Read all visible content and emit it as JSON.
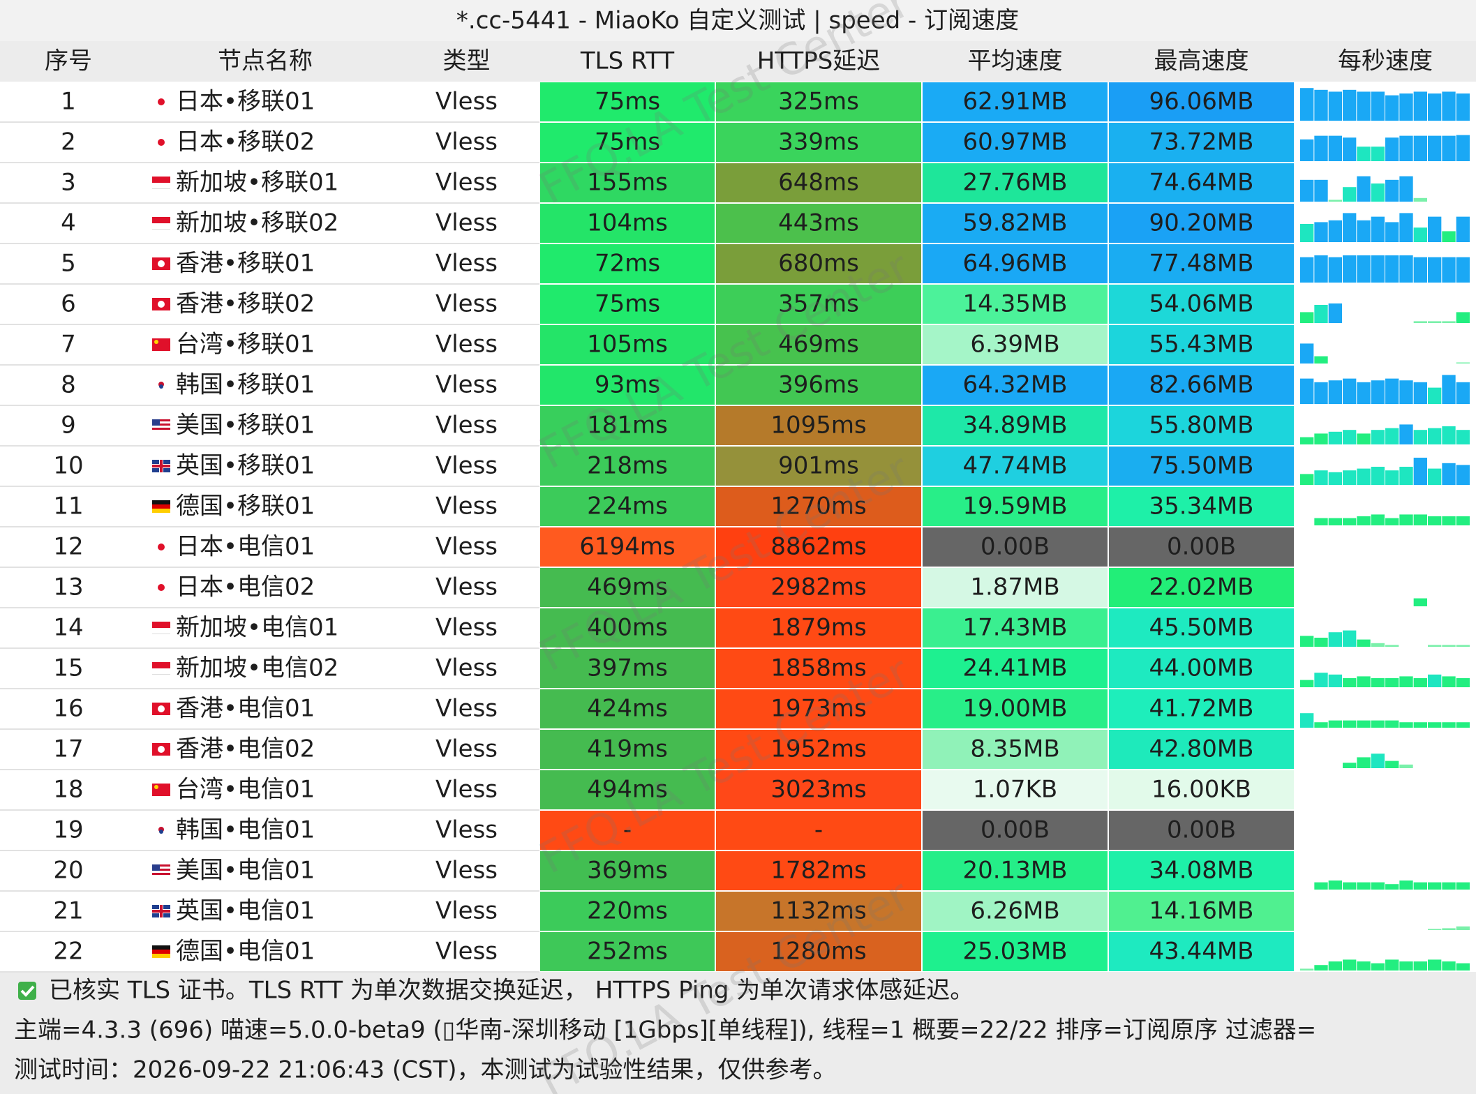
{
  "title": "*.cc-5441 - MiaoKo 自定义测试 | speed - 订阅速度",
  "columns": [
    "序号",
    "节点名称",
    "类型",
    "TLS RTT",
    "HTTPS延迟",
    "平均速度",
    "最高速度",
    "每秒速度"
  ],
  "rows": [
    {
      "cells": [
        "1",
        "日本•移联01",
        "Vless",
        "75ms",
        "325ms",
        "62.91MB",
        "96.06MB"
      ],
      "colors": [
        "#20ea6c",
        "#3ad45c",
        "#1aaaf5",
        "#1a9ef5"
      ],
      "speeds": [
        90,
        85,
        80,
        85,
        80,
        80,
        70,
        75,
        80,
        75,
        80,
        75
      ]
    },
    {
      "cells": [
        "2",
        "日本•移联02",
        "Vless",
        "75ms",
        "339ms",
        "60.97MB",
        "73.72MB"
      ],
      "colors": [
        "#20ea6c",
        "#3ad45c",
        "#1aabf4",
        "#1ab0f0"
      ],
      "speeds": [
        60,
        70,
        70,
        65,
        40,
        40,
        65,
        70,
        70,
        70,
        70,
        72
      ]
    },
    {
      "cells": [
        "3",
        "新加坡•移联01",
        "Vless",
        "155ms",
        "648ms",
        "27.76MB",
        "74.64MB"
      ],
      "colors": [
        "#2fd862",
        "#7a9e3a",
        "#1ee69a",
        "#1ab0f0"
      ],
      "speeds": [
        60,
        60,
        5,
        40,
        70,
        50,
        60,
        70,
        10,
        0,
        0,
        0
      ]
    },
    {
      "cells": [
        "4",
        "新加坡•移联02",
        "Vless",
        "104ms",
        "443ms",
        "59.82MB",
        "90.20MB"
      ],
      "colors": [
        "#24e468",
        "#4cc04c",
        "#1aabf3",
        "#1aa2f5"
      ],
      "speeds": [
        50,
        55,
        60,
        80,
        60,
        70,
        55,
        80,
        40,
        70,
        30,
        70
      ]
    },
    {
      "cells": [
        "5",
        "香港•移联01",
        "Vless",
        "72ms",
        "680ms",
        "64.96MB",
        "77.48MB"
      ],
      "colors": [
        "#20ea6c",
        "#7a9e3a",
        "#1aa8f5",
        "#1aacf2"
      ],
      "speeds": [
        70,
        75,
        70,
        75,
        75,
        75,
        75,
        75,
        70,
        70,
        70,
        70
      ]
    },
    {
      "cells": [
        "6",
        "香港•移联02",
        "Vless",
        "75ms",
        "357ms",
        "14.35MB",
        "54.06MB"
      ],
      "colors": [
        "#20ea6c",
        "#3dce58",
        "#4cf29a",
        "#1dd8d8"
      ],
      "speeds": [
        30,
        50,
        54,
        0,
        0,
        0,
        0,
        0,
        5,
        5,
        5,
        30
      ]
    },
    {
      "cells": [
        "7",
        "台湾•移联01",
        "Vless",
        "105ms",
        "469ms",
        "6.39MB",
        "55.43MB"
      ],
      "colors": [
        "#24e468",
        "#47c24e",
        "#a5f5c8",
        "#1cd5dc"
      ],
      "speeds": [
        55,
        20,
        0,
        0,
        0,
        0,
        0,
        0,
        0,
        0,
        0,
        3
      ]
    },
    {
      "cells": [
        "8",
        "韩国•移联01",
        "Vless",
        "93ms",
        "396ms",
        "64.32MB",
        "82.66MB"
      ],
      "colors": [
        "#22e66a",
        "#42c753",
        "#1aa8f5",
        "#1aa8f4"
      ],
      "speeds": [
        70,
        60,
        65,
        70,
        60,
        65,
        70,
        65,
        60,
        45,
        80,
        60
      ]
    },
    {
      "cells": [
        "9",
        "美国•移联01",
        "Vless",
        "181ms",
        "1095ms",
        "34.89MB",
        "55.80MB"
      ],
      "colors": [
        "#38cf5c",
        "#b57a2a",
        "#1ee8a8",
        "#1cd5dc"
      ],
      "speeds": [
        20,
        30,
        35,
        40,
        30,
        40,
        45,
        55,
        40,
        45,
        50,
        40
      ]
    },
    {
      "cells": [
        "10",
        "英国•移联01",
        "Vless",
        "218ms",
        "901ms",
        "47.74MB",
        "75.50MB"
      ],
      "colors": [
        "#3ccb5a",
        "#95913a",
        "#1fcfe0",
        "#1aaef0"
      ],
      "speeds": [
        30,
        40,
        35,
        40,
        45,
        50,
        40,
        50,
        75,
        45,
        60,
        55
      ]
    },
    {
      "cells": [
        "11",
        "德国•移联01",
        "Vless",
        "224ms",
        "1270ms",
        "19.59MB",
        "35.34MB"
      ],
      "colors": [
        "#3ccb5a",
        "#dd5c1c",
        "#28ee88",
        "#1ef0a8"
      ],
      "speeds": [
        0,
        20,
        20,
        20,
        25,
        30,
        20,
        30,
        30,
        25,
        25,
        25
      ]
    },
    {
      "cells": [
        "12",
        "日本•电信01",
        "Vless",
        "6194ms",
        "8862ms",
        "0.00B",
        "0.00B"
      ],
      "colors": [
        "#ff5a1f",
        "#ff4010",
        "#666666",
        "#666666"
      ],
      "speeds": [
        0,
        0,
        0,
        0,
        0,
        0,
        0,
        0,
        0,
        0,
        0,
        0
      ]
    },
    {
      "cells": [
        "13",
        "日本•电信02",
        "Vless",
        "469ms",
        "2982ms",
        "1.87MB",
        "22.02MB"
      ],
      "colors": [
        "#45bb50",
        "#ff4818",
        "#d5f8e4",
        "#22ee78"
      ],
      "speeds": [
        0,
        0,
        0,
        0,
        0,
        0,
        0,
        0,
        22,
        0,
        0,
        0
      ]
    },
    {
      "cells": [
        "14",
        "新加坡•电信01",
        "Vless",
        "400ms",
        "1879ms",
        "17.43MB",
        "45.50MB"
      ],
      "colors": [
        "#45bb50",
        "#ff4a14",
        "#3aef90",
        "#1eeac0"
      ],
      "speeds": [
        30,
        25,
        40,
        45,
        20,
        10,
        5,
        0,
        0,
        5,
        5,
        5
      ]
    },
    {
      "cells": [
        "15",
        "新加坡•电信02",
        "Vless",
        "397ms",
        "1858ms",
        "24.41MB",
        "44.00MB"
      ],
      "colors": [
        "#45bb50",
        "#ff4a14",
        "#1ef090",
        "#1eeac0"
      ],
      "speeds": [
        20,
        40,
        35,
        25,
        30,
        25,
        25,
        30,
        25,
        35,
        30,
        25
      ]
    },
    {
      "cells": [
        "16",
        "香港•电信01",
        "Vless",
        "424ms",
        "1973ms",
        "19.00MB",
        "41.72MB"
      ],
      "colors": [
        "#45bb50",
        "#ff4a14",
        "#28ee88",
        "#1eeebb"
      ],
      "speeds": [
        40,
        15,
        20,
        20,
        20,
        20,
        20,
        15,
        15,
        15,
        15,
        15
      ]
    },
    {
      "cells": [
        "17",
        "香港•电信02",
        "Vless",
        "419ms",
        "1952ms",
        "8.35MB",
        "42.80MB"
      ],
      "colors": [
        "#45bb50",
        "#ff4a14",
        "#90f2b8",
        "#1eeabb"
      ],
      "speeds": [
        0,
        0,
        0,
        15,
        30,
        40,
        20,
        10,
        0,
        0,
        0,
        0
      ]
    },
    {
      "cells": [
        "18",
        "台湾•电信01",
        "Vless",
        "494ms",
        "3023ms",
        "1.07KB",
        "16.00KB"
      ],
      "colors": [
        "#45bb50",
        "#ff4818",
        "#e8faef",
        "#e2faea"
      ],
      "speeds": [
        0,
        0,
        0,
        0,
        0,
        0,
        0,
        0,
        0,
        0,
        0,
        0
      ]
    },
    {
      "cells": [
        "19",
        "韩国•电信01",
        "Vless",
        "-",
        "-",
        "0.00B",
        "0.00B"
      ],
      "colors": [
        "#ff4a14",
        "#ff4a14",
        "#666666",
        "#666666"
      ],
      "speeds": [
        0,
        0,
        0,
        0,
        0,
        0,
        0,
        0,
        0,
        0,
        0,
        0
      ]
    },
    {
      "cells": [
        "20",
        "美国•电信01",
        "Vless",
        "369ms",
        "1782ms",
        "20.13MB",
        "34.08MB"
      ],
      "colors": [
        "#42be52",
        "#ff4a14",
        "#25ee88",
        "#1ef0a8"
      ],
      "speeds": [
        0,
        20,
        25,
        20,
        20,
        20,
        15,
        25,
        20,
        20,
        20,
        20
      ]
    },
    {
      "cells": [
        "21",
        "英国•电信01",
        "Vless",
        "220ms",
        "1132ms",
        "6.26MB",
        "14.16MB"
      ],
      "colors": [
        "#3ccb5a",
        "#c7752a",
        "#a0f4c4",
        "#50f090"
      ],
      "speeds": [
        0,
        0,
        0,
        0,
        0,
        0,
        0,
        0,
        0,
        3,
        5,
        10
      ]
    },
    {
      "cells": [
        "22",
        "德国•电信01",
        "Vless",
        "252ms",
        "1280ms",
        "25.03MB",
        "43.44MB"
      ],
      "colors": [
        "#3ec858",
        "#d9621f",
        "#1ef08e",
        "#1eeac0"
      ],
      "speeds": [
        5,
        15,
        25,
        30,
        25,
        20,
        30,
        25,
        25,
        30,
        25,
        20
      ]
    }
  ],
  "watermark": "FFQ.LA Test Center",
  "footer": [
    "已核实 TLS 证书。TLS RTT 为单次数据交换延迟， HTTPS Ping 为单次请求体感延迟。",
    "主端=4.3.3 (696) 喵速=5.0.0-beta9 (▯华南-深圳移动 [1Gbps][单线程]), 线程=1 概要=22/22 排序=订阅原序 过滤器=",
    "测试时间：2026-09-22 21:06:43 (CST)，本测试为试验性结果，仅供参考。"
  ]
}
